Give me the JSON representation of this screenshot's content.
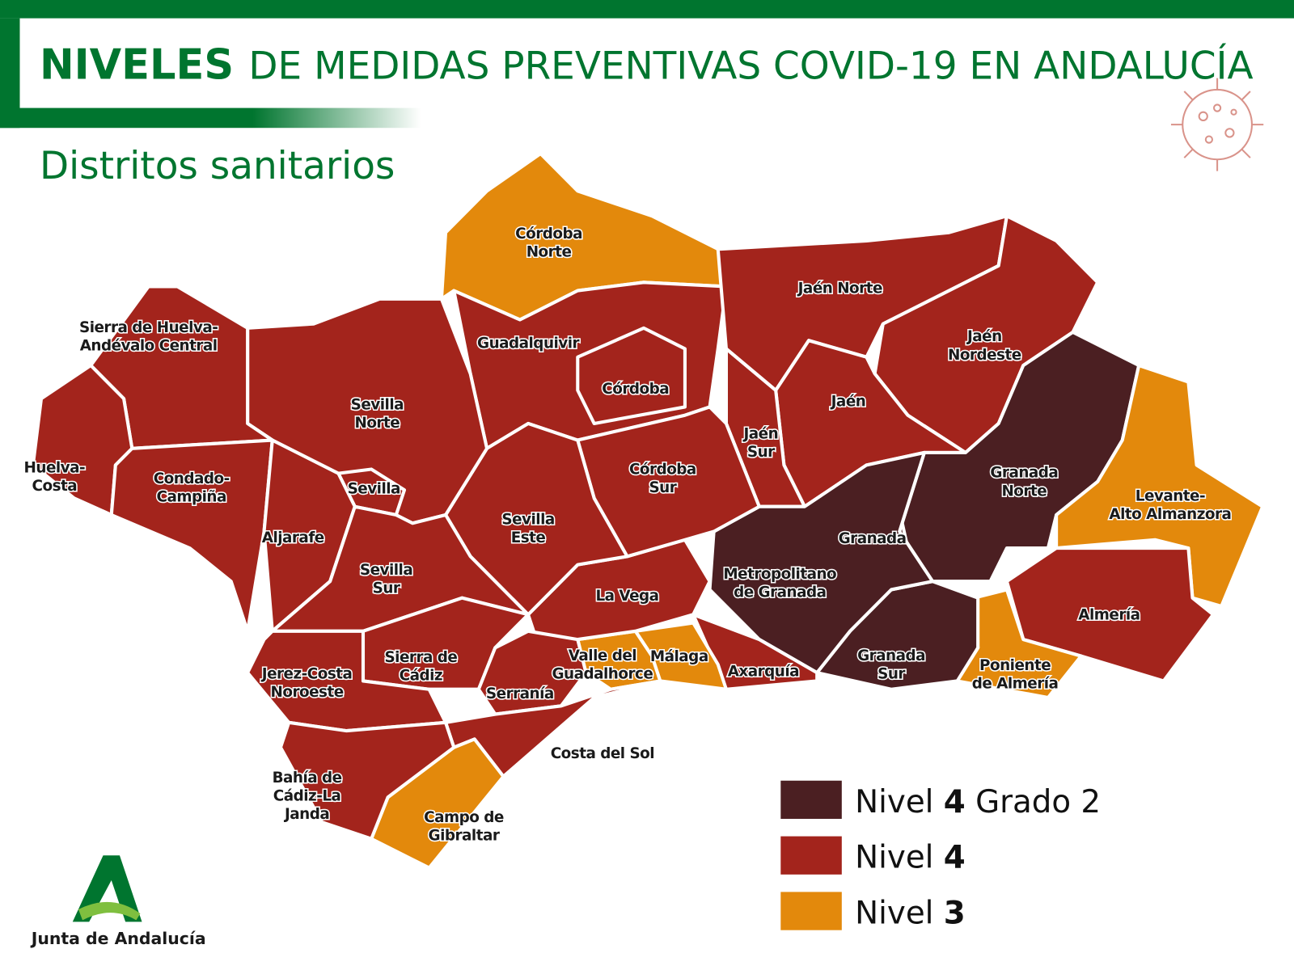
{
  "header": {
    "title_bold": "NIVELES",
    "title": "DE MEDIDAS PREVENTIVAS COVID-19 EN ANDALUCÍA",
    "subtitle": "Distritos sanitarios"
  },
  "districts": [
    {
      "label": [
        "Córdoba",
        "Norte"
      ],
      "color": "#e3890c"
    },
    {
      "label": [
        "Guadalquivir"
      ],
      "color": "#a3241c"
    },
    {
      "label": [
        "Córdoba"
      ],
      "color": "#a3241c"
    },
    {
      "label": [
        "Jaén Norte"
      ],
      "color": "#a3241c"
    },
    {
      "label": [
        "Jaén",
        "Nordeste"
      ],
      "color": "#a3241c"
    },
    {
      "label": [
        "Jaén"
      ],
      "color": "#a3241c"
    },
    {
      "label": [
        "Jaén",
        "Sur"
      ],
      "color": "#a3241c"
    },
    {
      "label": [
        "Granada",
        "Norte"
      ],
      "color": "#4b1f22"
    },
    {
      "label": [
        "Levante-",
        "Alto Almanzora"
      ],
      "color": "#e3890c"
    },
    {
      "label": [
        "Almería"
      ],
      "color": "#a3241c"
    },
    {
      "label": [
        "Poniente",
        "de Almería"
      ],
      "color": "#e3890c"
    },
    {
      "label": [
        "Granada",
        "Sur"
      ],
      "color": "#4b1f22"
    },
    {
      "label": [
        "Granada"
      ],
      "color": "#4b1f22"
    },
    {
      "label": [
        "Metropolitano",
        "de Granada"
      ],
      "color": "#4b1f22"
    },
    {
      "label": [
        "Axarquía"
      ],
      "color": "#a3241c"
    },
    {
      "label": [
        "Málaga"
      ],
      "color": "#e3890c"
    },
    {
      "label": [
        "Valle del",
        "Guadalhorce"
      ],
      "color": "#e3890c"
    },
    {
      "label": [
        "La Vega"
      ],
      "color": "#a3241c"
    },
    {
      "label": [
        "Córdoba",
        "Sur"
      ],
      "color": "#a3241c"
    },
    {
      "label": [
        "Sevilla",
        "Este"
      ],
      "color": "#a3241c"
    },
    {
      "label": [
        "Sevilla",
        "Norte"
      ],
      "color": "#a3241c"
    },
    {
      "label": [
        "Sevilla"
      ],
      "color": "#a3241c"
    },
    {
      "label": [
        "Sierra de Huelva-",
        "Andévalo Central"
      ],
      "color": "#a3241c"
    },
    {
      "label": [
        "Huelva-",
        "Costa"
      ],
      "color": "#a3241c"
    },
    {
      "label": [
        "Condado-",
        "Campiña"
      ],
      "color": "#a3241c"
    },
    {
      "label": [
        "Aljarafe"
      ],
      "color": "#a3241c"
    },
    {
      "label": [
        "Sevilla",
        "Sur"
      ],
      "color": "#a3241c"
    },
    {
      "label": [
        "Sierra de",
        "Cádiz"
      ],
      "color": "#a3241c"
    },
    {
      "label": [
        "Jerez-Costa",
        "Noroeste"
      ],
      "color": "#a3241c"
    },
    {
      "label": [
        "Serranía"
      ],
      "color": "#a3241c"
    },
    {
      "label": [
        "Costa del Sol"
      ],
      "color": "#a3241c"
    },
    {
      "label": [
        "Campo de",
        "Gibraltar"
      ],
      "color": "#e3890c"
    },
    {
      "label": [
        "Bahía de",
        "Cádiz-La",
        "Janda"
      ],
      "color": "#a3241c"
    }
  ],
  "legend": [
    {
      "color": "#4b1f22",
      "label": [
        "Nivel ",
        "4",
        " Grado 2"
      ]
    },
    {
      "color": "#a3241c",
      "label": [
        "Nivel ",
        "4"
      ]
    },
    {
      "color": "#e3890c",
      "label": [
        "Nivel ",
        "3"
      ]
    }
  ],
  "logo": {
    "text": "Junta de Andalucía"
  }
}
